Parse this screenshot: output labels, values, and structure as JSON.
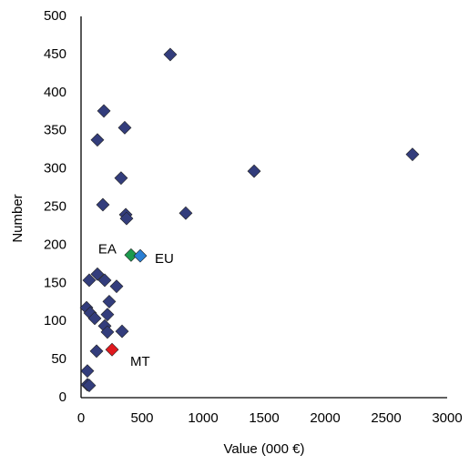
{
  "chart_data": {
    "type": "scatter",
    "x_label": "Value (000 €)",
    "y_label": "Number",
    "xlim": [
      0,
      3000
    ],
    "xticks": [
      0,
      500,
      1000,
      1500,
      2000,
      2500,
      3000
    ],
    "ylim": [
      0,
      500
    ],
    "yticks": [
      0,
      50,
      100,
      150,
      200,
      250,
      300,
      350,
      400,
      450,
      500
    ],
    "grid": false,
    "series": [
      {
        "color": "#333d7c",
        "x": [
          731,
          187,
          358,
          134,
          328,
          1418,
          2716,
          179,
          366,
          373,
          858,
          134,
          67,
          194,
          291,
          231,
          45,
          75,
          112,
          216,
          194,
          216,
          336,
          127,
          52,
          52,
          67
        ],
        "values": [
          450,
          376,
          354,
          338,
          288,
          297,
          319,
          253,
          240,
          235,
          242,
          162,
          154,
          154,
          146,
          126,
          118,
          111,
          104,
          109,
          94,
          86,
          87,
          61,
          35,
          17,
          16
        ]
      },
      {
        "name": "EA",
        "color": "#1c9a4e",
        "x": [
          410
        ],
        "values": [
          187
        ]
      },
      {
        "name": "EU",
        "color": "#2a7fd4",
        "x": [
          485
        ],
        "values": [
          186
        ]
      },
      {
        "name": "MT",
        "color": "#e0191e",
        "x": [
          254
        ],
        "values": [
          63
        ]
      }
    ]
  }
}
